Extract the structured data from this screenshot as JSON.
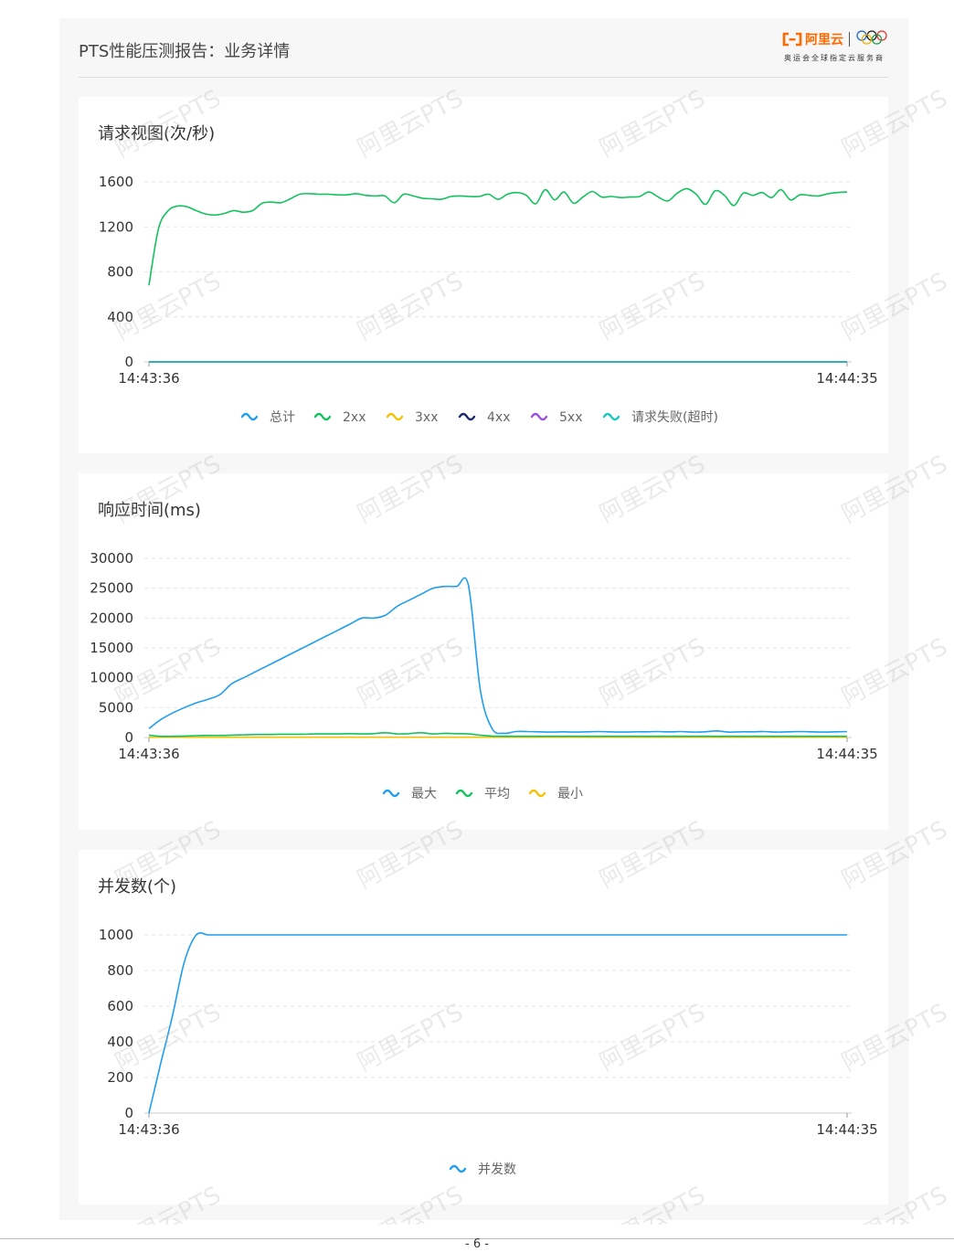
{
  "header": {
    "title": "PTS性能压测报告：业务详情",
    "brand_name": "阿里云",
    "brand_slogan": "奥运会全球指定云服务商"
  },
  "watermark_text": "阿里云PTS",
  "page_number": "- 6 -",
  "colors": {
    "total": "#1f9ef0",
    "2xx": "#12c25f",
    "3xx": "#f7c100",
    "4xx": "#1a2a6c",
    "5xx": "#9b4de0",
    "failed": "#16c8c0",
    "max": "#1f9ef0",
    "avg": "#12c25f",
    "min": "#f7c100",
    "concurrency": "#1f9ef0",
    "brand": "#ff6a00"
  },
  "chart_data": [
    {
      "type": "line",
      "title": "请求视图(次/秒)",
      "xlabel": "",
      "ylabel": "",
      "x_ticks": [
        "14:43:36",
        "14:44:35"
      ],
      "x_range": [
        "14:43:36",
        "14:44:35"
      ],
      "ylim": [
        0,
        1600
      ],
      "y_ticks": [
        0,
        400,
        800,
        1200,
        1600
      ],
      "grid": true,
      "legend_position": "bottom",
      "legend": [
        "总计",
        "2xx",
        "3xx",
        "4xx",
        "5xx",
        "请求失败(超时)"
      ],
      "series": [
        {
          "name": "2xx",
          "values": [
            680,
            1180,
            1340,
            1385,
            1380,
            1345,
            1315,
            1305,
            1320,
            1345,
            1330,
            1345,
            1410,
            1420,
            1415,
            1450,
            1490,
            1495,
            1490,
            1490,
            1485,
            1485,
            1495,
            1480,
            1475,
            1475,
            1415,
            1490,
            1475,
            1455,
            1450,
            1445,
            1470,
            1475,
            1470,
            1470,
            1490,
            1445,
            1490,
            1505,
            1480,
            1405,
            1530,
            1440,
            1510,
            1410,
            1465,
            1515,
            1465,
            1470,
            1460,
            1465,
            1470,
            1510,
            1465,
            1430,
            1500,
            1540,
            1490,
            1400,
            1520,
            1480,
            1390,
            1500,
            1480,
            1505,
            1460,
            1530,
            1440,
            1485,
            1480,
            1475,
            1495,
            1505,
            1510
          ]
        },
        {
          "name": "总计",
          "values": [
            0,
            0
          ]
        },
        {
          "name": "3xx",
          "values": [
            0,
            0
          ]
        },
        {
          "name": "4xx",
          "values": [
            0,
            0
          ]
        },
        {
          "name": "5xx",
          "values": [
            0,
            0
          ]
        },
        {
          "name": "请求失败(超时)",
          "values": [
            0,
            0
          ]
        }
      ]
    },
    {
      "type": "line",
      "title": "响应时间(ms)",
      "xlabel": "",
      "ylabel": "",
      "x_ticks": [
        "14:43:36",
        "14:44:35"
      ],
      "x_range": [
        "14:43:36",
        "14:44:35"
      ],
      "ylim": [
        0,
        30000
      ],
      "y_ticks": [
        0,
        5000,
        10000,
        15000,
        20000,
        25000,
        30000
      ],
      "grid": true,
      "legend_position": "bottom",
      "legend": [
        "最大",
        "平均",
        "最小"
      ],
      "series": [
        {
          "name": "最大",
          "values": [
            1500,
            3000,
            4100,
            5000,
            5800,
            6400,
            7200,
            9000,
            10000,
            11000,
            12000,
            13000,
            14000,
            15000,
            16000,
            17000,
            18000,
            19000,
            20000,
            20000,
            20500,
            22000,
            23000,
            24000,
            25000,
            25300,
            25300,
            25500,
            8000,
            1500,
            700,
            1000,
            1000,
            950,
            900,
            950,
            900,
            950,
            1000,
            950,
            900,
            950,
            950,
            1000,
            950,
            1000,
            900,
            950,
            1100,
            900,
            950,
            950,
            1000,
            900,
            950,
            1000,
            950,
            900,
            950,
            1000
          ]
        },
        {
          "name": "平均",
          "values": [
            400,
            200,
            200,
            250,
            300,
            350,
            350,
            400,
            450,
            500,
            500,
            550,
            550,
            550,
            600,
            600,
            600,
            650,
            600,
            650,
            800,
            600,
            650,
            800,
            600,
            700,
            650,
            600,
            400,
            250,
            200,
            200,
            200,
            200,
            200,
            200,
            200,
            200,
            200,
            200,
            200,
            200,
            200,
            200,
            200,
            200,
            200,
            200,
            200,
            200,
            200,
            200,
            200,
            200,
            200,
            200,
            200,
            200,
            200,
            200
          ]
        },
        {
          "name": "最小",
          "values": [
            50,
            50
          ]
        }
      ]
    },
    {
      "type": "line",
      "title": "并发数(个)",
      "xlabel": "",
      "ylabel": "",
      "x_ticks": [
        "14:43:36",
        "14:44:35"
      ],
      "x_range": [
        "14:43:36",
        "14:44:35"
      ],
      "ylim": [
        0,
        1000
      ],
      "y_ticks": [
        0,
        200,
        400,
        600,
        800,
        1000
      ],
      "grid": true,
      "legend_position": "bottom",
      "legend": [
        "并发数"
      ],
      "series": [
        {
          "name": "并发数",
          "values": [
            0,
            280,
            550,
            850,
            1000,
            1000,
            1000,
            1000,
            1000,
            1000,
            1000,
            1000,
            1000,
            1000,
            1000,
            1000,
            1000,
            1000,
            1000,
            1000,
            1000,
            1000,
            1000,
            1000,
            1000,
            1000,
            1000,
            1000,
            1000,
            1000,
            1000,
            1000,
            1000,
            1000,
            1000,
            1000,
            1000,
            1000,
            1000,
            1000,
            1000,
            1000,
            1000,
            1000,
            1000,
            1000,
            1000,
            1000,
            1000,
            1000,
            1000,
            1000,
            1000,
            1000,
            1000,
            1000,
            1000,
            1000,
            1000,
            1000
          ]
        }
      ]
    }
  ]
}
